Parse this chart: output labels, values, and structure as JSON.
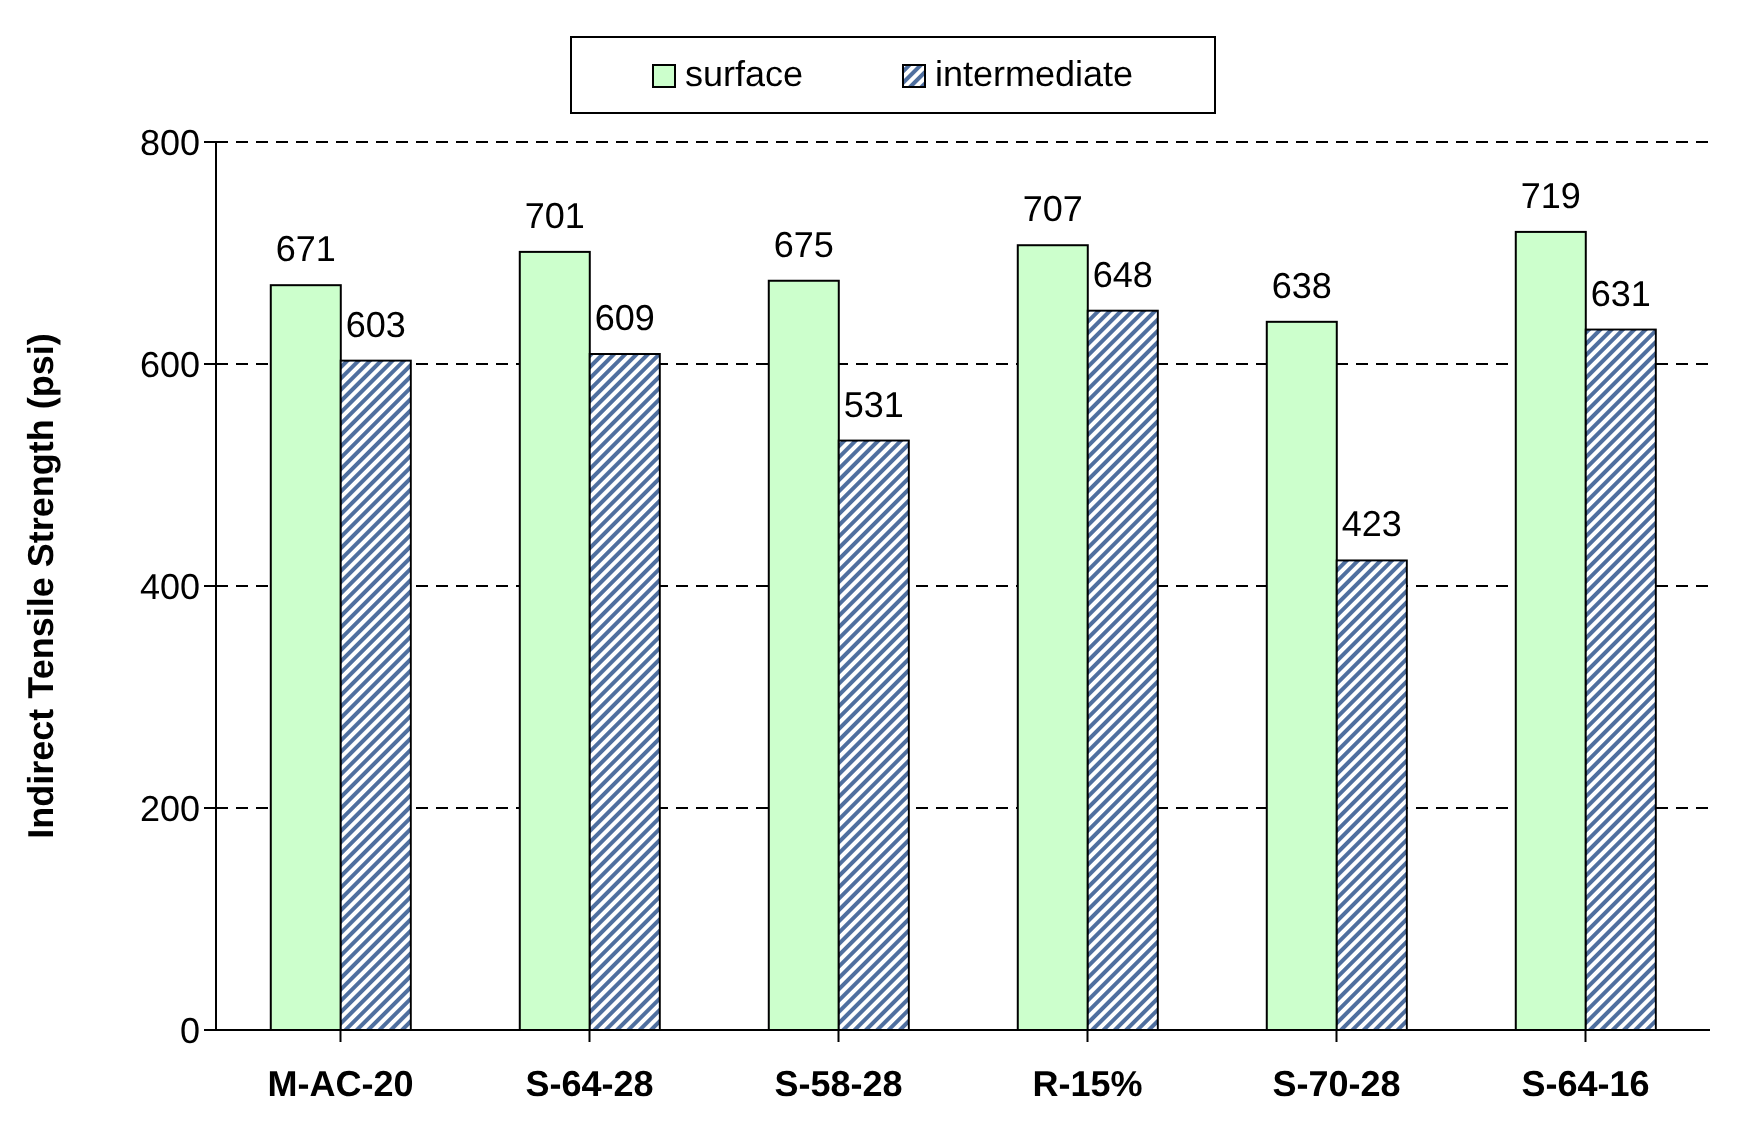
{
  "chart_data": {
    "type": "bar",
    "ylabel": "Indirect Tensile Strength (psi)",
    "categories": [
      "M-AC-20",
      "S-64-28",
      "S-58-28",
      "R-15%",
      "S-70-28",
      "S-64-16"
    ],
    "series": [
      {
        "name": "surface",
        "color": "#ccffcc",
        "values": [
          671,
          701,
          675,
          707,
          638,
          719
        ]
      },
      {
        "name": "intermediate",
        "color": "#4f6f9f",
        "values": [
          603,
          609,
          531,
          648,
          423,
          631
        ]
      }
    ],
    "ylim": [
      0,
      800
    ],
    "yticks": [
      0,
      200,
      400,
      600,
      800
    ],
    "grid": "y",
    "legend": "top",
    "data_labels": true
  }
}
